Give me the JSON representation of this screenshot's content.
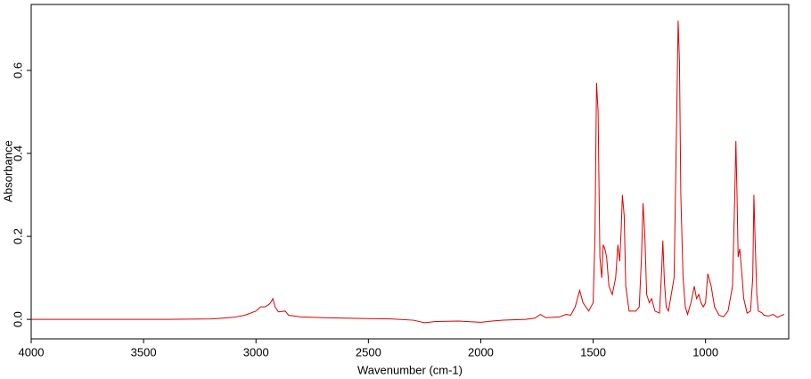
{
  "chart_data": {
    "type": "line",
    "xlabel": "Wavenumber (cm-1)",
    "ylabel": "Absorbance",
    "xlim": [
      4000,
      630
    ],
    "ylim": [
      -0.047,
      0.759
    ],
    "xticks": [
      4000,
      3500,
      3000,
      2500,
      2000,
      1500,
      1000
    ],
    "yticks": [
      {
        "value": 0,
        "label": "0.0"
      },
      {
        "value": 0.2,
        "label": "0.2"
      },
      {
        "value": 0.4,
        "label": "0.4"
      },
      {
        "value": 0.6,
        "label": "0.6"
      }
    ],
    "x": [
      4000,
      3800,
      3600,
      3400,
      3200,
      3100,
      3050,
      3000,
      2980,
      2960,
      2945,
      2935,
      2925,
      2915,
      2900,
      2870,
      2855,
      2800,
      2700,
      2600,
      2500,
      2400,
      2300,
      2250,
      2200,
      2100,
      2000,
      1950,
      1900,
      1800,
      1760,
      1735,
      1710,
      1650,
      1620,
      1600,
      1580,
      1560,
      1545,
      1520,
      1500,
      1492,
      1485,
      1478,
      1470,
      1462,
      1455,
      1448,
      1440,
      1430,
      1415,
      1400,
      1390,
      1382,
      1375,
      1370,
      1362,
      1355,
      1340,
      1310,
      1295,
      1285,
      1278,
      1270,
      1262,
      1250,
      1240,
      1225,
      1205,
      1195,
      1190,
      1183,
      1175,
      1165,
      1140,
      1128,
      1122,
      1116,
      1110,
      1100,
      1090,
      1080,
      1065,
      1050,
      1040,
      1030,
      1020,
      1010,
      1000,
      990,
      975,
      960,
      940,
      920,
      900,
      880,
      870,
      865,
      860,
      855,
      848,
      840,
      830,
      815,
      800,
      790,
      785,
      780,
      772,
      765,
      750,
      740,
      720,
      700,
      680,
      660,
      650
    ],
    "series": [
      {
        "name": "Absorbance",
        "color": "#e00000",
        "values": [
          0,
          0,
          0,
          0,
          0.001,
          0.005,
          0.01,
          0.02,
          0.03,
          0.03,
          0.035,
          0.04,
          0.05,
          0.03,
          0.018,
          0.02,
          0.01,
          0.006,
          0.004,
          0.003,
          0.002,
          0.001,
          -0.002,
          -0.008,
          -0.005,
          -0.004,
          -0.007,
          -0.004,
          -0.002,
          0,
          0.003,
          0.012,
          0.004,
          0.006,
          0.012,
          0.01,
          0.03,
          0.07,
          0.04,
          0.02,
          0.04,
          0.2,
          0.57,
          0.5,
          0.15,
          0.1,
          0.18,
          0.17,
          0.15,
          0.08,
          0.06,
          0.1,
          0.18,
          0.14,
          0.22,
          0.3,
          0.25,
          0.08,
          0.02,
          0.02,
          0.03,
          0.15,
          0.28,
          0.2,
          0.06,
          0.04,
          0.05,
          0.02,
          0.015,
          0.12,
          0.19,
          0.09,
          0.03,
          0.02,
          0.1,
          0.5,
          0.72,
          0.62,
          0.3,
          0.1,
          0.03,
          0.012,
          0.04,
          0.08,
          0.05,
          0.06,
          0.04,
          0.03,
          0.04,
          0.11,
          0.08,
          0.03,
          0.01,
          0.006,
          0.02,
          0.08,
          0.3,
          0.43,
          0.3,
          0.15,
          0.17,
          0.12,
          0.05,
          0.015,
          0.02,
          0.1,
          0.3,
          0.2,
          0.06,
          0.02,
          0.016,
          0.01,
          0.008,
          0.012,
          0.005,
          0.01,
          0.012
        ]
      }
    ]
  }
}
